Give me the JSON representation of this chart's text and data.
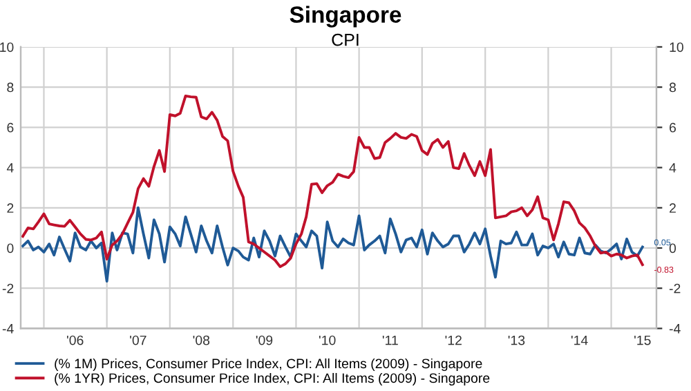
{
  "chart_data": {
    "type": "line",
    "title": "Singapore",
    "subtitle": "CPI",
    "x": [
      "2005-09",
      "2005-10",
      "2005-11",
      "2005-12",
      "2006-01",
      "2006-02",
      "2006-03",
      "2006-04",
      "2006-05",
      "2006-06",
      "2006-07",
      "2006-08",
      "2006-09",
      "2006-10",
      "2006-11",
      "2006-12",
      "2007-01",
      "2007-02",
      "2007-03",
      "2007-04",
      "2007-05",
      "2007-06",
      "2007-07",
      "2007-08",
      "2007-09",
      "2007-10",
      "2007-11",
      "2007-12",
      "2008-01",
      "2008-02",
      "2008-03",
      "2008-04",
      "2008-05",
      "2008-06",
      "2008-07",
      "2008-08",
      "2008-09",
      "2008-10",
      "2008-11",
      "2008-12",
      "2009-01",
      "2009-02",
      "2009-03",
      "2009-04",
      "2009-05",
      "2009-06",
      "2009-07",
      "2009-08",
      "2009-09",
      "2009-10",
      "2009-11",
      "2009-12",
      "2010-01",
      "2010-02",
      "2010-03",
      "2010-04",
      "2010-05",
      "2010-06",
      "2010-07",
      "2010-08",
      "2010-09",
      "2010-10",
      "2010-11",
      "2010-12",
      "2011-01",
      "2011-02",
      "2011-03",
      "2011-04",
      "2011-05",
      "2011-06",
      "2011-07",
      "2011-08",
      "2011-09",
      "2011-10",
      "2011-11",
      "2011-12",
      "2012-01",
      "2012-02",
      "2012-03",
      "2012-04",
      "2012-05",
      "2012-06",
      "2012-07",
      "2012-08",
      "2012-09",
      "2012-10",
      "2012-11",
      "2012-12",
      "2013-01",
      "2013-02",
      "2013-03",
      "2013-04",
      "2013-05",
      "2013-06",
      "2013-07",
      "2013-08",
      "2013-09",
      "2013-10",
      "2013-11",
      "2013-12",
      "2014-01",
      "2014-02",
      "2014-03",
      "2014-04",
      "2014-05",
      "2014-06",
      "2014-07",
      "2014-08",
      "2014-09",
      "2014-10",
      "2014-11",
      "2014-12",
      "2015-01",
      "2015-02",
      "2015-03",
      "2015-04",
      "2015-05",
      "2015-06",
      "2015-07"
    ],
    "series": [
      {
        "name": "(% 1M) Prices, Consumer Price Index, CPI: All Items (2009) - Singapore",
        "color": "#1f5a96",
        "values": [
          0.1,
          0.35,
          -0.1,
          0.05,
          -0.2,
          0.2,
          -0.35,
          0.55,
          -0.05,
          -0.65,
          0.75,
          0.05,
          -0.1,
          0.35,
          0,
          0.25,
          -1.65,
          0.75,
          -0.1,
          0.75,
          0.7,
          -0.25,
          2.0,
          0.7,
          -0.5,
          1.4,
          0.7,
          -0.7,
          1.05,
          0.7,
          0.1,
          1.55,
          0.7,
          -0.2,
          1.1,
          0.35,
          -0.25,
          1.1,
          0.05,
          -0.85,
          0,
          -0.15,
          -0.45,
          -0.6,
          0.5,
          -0.45,
          0.85,
          0.35,
          -0.4,
          0.6,
          0.05,
          -0.45,
          0.7,
          0.35,
          0.05,
          0.85,
          0.6,
          -1.0,
          1.3,
          0.35,
          0.05,
          0.45,
          0.25,
          0.15,
          1.6,
          -0.1,
          0.15,
          0.35,
          0.6,
          -0.25,
          1.45,
          0.7,
          -0.2,
          0.4,
          0.5,
          0.05,
          0.9,
          -0.3,
          0.75,
          0.35,
          0.05,
          0.2,
          0.6,
          0.6,
          -0.2,
          0.2,
          0.75,
          0.2,
          0.95,
          -0.4,
          -1.45,
          0.35,
          0.2,
          0.25,
          0.8,
          0.15,
          0.15,
          0.7,
          -0.35,
          0.1,
          0,
          0.2,
          -0.45,
          0.3,
          -0.3,
          -0.35,
          0.5,
          -0.25,
          -0.3,
          0.15,
          -0.15,
          -0.25,
          -0.05,
          0.2,
          -0.55,
          0.45,
          -0.2,
          -0.4,
          0.05
        ]
      },
      {
        "name": "(% 1YR) Prices, Consumer Price Index, CPI: All Items (2009) - Singapore",
        "color": "#c0112b",
        "values": [
          0.58,
          1.0,
          0.95,
          1.3,
          1.7,
          1.2,
          1.15,
          1.1,
          1.08,
          1.38,
          1.05,
          0.7,
          0.43,
          0.4,
          0.5,
          0.8,
          -0.55,
          0.15,
          0.35,
          0.7,
          1.23,
          1.77,
          2.95,
          3.45,
          3.07,
          4.05,
          4.85,
          3.8,
          6.63,
          6.57,
          6.7,
          7.56,
          7.52,
          7.5,
          6.52,
          6.42,
          6.75,
          6.35,
          5.55,
          5.33,
          3.82,
          3.07,
          2.52,
          0.3,
          0.2,
          0.0,
          -0.2,
          -0.4,
          -0.6,
          -0.93,
          -0.78,
          -0.5,
          0.2,
          0.7,
          1.55,
          3.17,
          3.2,
          2.75,
          3.1,
          3.27,
          3.67,
          3.57,
          3.5,
          3.8,
          5.5,
          5.0,
          5.0,
          4.45,
          4.5,
          5.25,
          5.45,
          5.7,
          5.5,
          5.45,
          5.65,
          5.55,
          4.85,
          4.65,
          5.2,
          5.4,
          5.0,
          5.3,
          4.0,
          3.95,
          4.7,
          4.1,
          3.6,
          4.3,
          3.6,
          4.9,
          1.5,
          1.55,
          1.6,
          1.8,
          1.85,
          2.0,
          1.6,
          1.9,
          2.55,
          1.5,
          1.4,
          0.4,
          1.2,
          2.3,
          2.25,
          1.85,
          1.25,
          1.0,
          0.6,
          0.1,
          -0.25,
          -0.2,
          -0.4,
          -0.3,
          -0.35,
          -0.5,
          -0.4,
          -0.35,
          -0.83
        ]
      }
    ],
    "annotations": [
      {
        "text": "0.05",
        "x": "2015-07",
        "y": 0.05
      },
      {
        "text": "-0.83",
        "x": "2015-07",
        "y": -0.83
      }
    ],
    "xlim": [
      "2005-08-20",
      "2015-09-20"
    ],
    "xticks": [
      {
        "value": "2006",
        "label": null
      },
      {
        "value": "2006-07",
        "label": "'06"
      },
      {
        "value": "2007",
        "label": null
      },
      {
        "value": "2007-07",
        "label": "'07"
      },
      {
        "value": "2008",
        "label": null
      },
      {
        "value": "2008-07",
        "label": "'08"
      },
      {
        "value": "2009",
        "label": null
      },
      {
        "value": "2009-07",
        "label": "'09"
      },
      {
        "value": "2010",
        "label": null
      },
      {
        "value": "2010-07",
        "label": "'10"
      },
      {
        "value": "2011",
        "label": null
      },
      {
        "value": "2011-07",
        "label": "'11"
      },
      {
        "value": "2012",
        "label": null
      },
      {
        "value": "2012-07",
        "label": "'12"
      },
      {
        "value": "2013",
        "label": null
      },
      {
        "value": "2013-07",
        "label": "'13"
      },
      {
        "value": "2014",
        "label": null
      },
      {
        "value": "2014-07",
        "label": "'14"
      },
      {
        "value": "2015",
        "label": null
      },
      {
        "value": "2015-07",
        "label": "'15"
      }
    ],
    "ylim": [
      -4,
      10
    ],
    "yticks": [
      -4,
      -2,
      0,
      2,
      4,
      6,
      8,
      10
    ],
    "y2lim": [
      -4,
      10
    ],
    "y2ticks": [
      -4,
      -2,
      0,
      2,
      4,
      6,
      8,
      10
    ],
    "grid": true,
    "legend": "bottom",
    "line_style": "solid",
    "marker": "none"
  }
}
